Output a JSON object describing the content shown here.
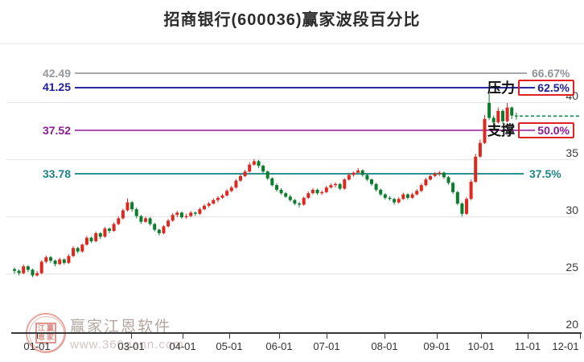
{
  "title": "招商银行(600036)赢家波段百分比",
  "watermark": {
    "brand": "赢家江恩软件",
    "url": "www.360gann.com",
    "seal_chars": [
      "江",
      "赢",
      "恩",
      "家"
    ]
  },
  "chart_data": {
    "type": "candlestick",
    "title": "招商银行(600036)赢家波段百分比",
    "x_ticks": [
      "01-01",
      "03-01",
      "04-01",
      "05-01",
      "06-01",
      "07-01",
      "08-01",
      "09-01",
      "10-01",
      "11-01",
      "12-01"
    ],
    "y_ticks": [
      40,
      35,
      30,
      25,
      20
    ],
    "ylim": [
      20,
      45.3
    ],
    "grid": true,
    "levels": [
      {
        "price": "42.49",
        "percent": "66.67%",
        "role": "",
        "color": "#a9a9a9",
        "boxed": false
      },
      {
        "price": "41.25",
        "percent": "62.5%",
        "role": "压力",
        "color": "#1e1e9c",
        "boxed": true
      },
      {
        "price": "37.52",
        "percent": "50.0%",
        "role": "支撑",
        "color": "#8e1b96",
        "boxed": true
      },
      {
        "price": "33.78",
        "percent": "37.5%",
        "role": "",
        "color": "#1e8389",
        "boxed": false
      }
    ],
    "last_price_line": {
      "price": 38.85,
      "style": "dashed",
      "color": "#0f8f4e"
    },
    "colors": {
      "up": "#dc281e",
      "down": "#0a7d2c"
    },
    "candles": [
      [
        25.45,
        25.6,
        25.05,
        25.3
      ],
      [
        25.3,
        25.45,
        24.9,
        25.1
      ],
      [
        25.1,
        25.85,
        25.0,
        25.7
      ],
      [
        25.7,
        25.8,
        25.2,
        25.4
      ],
      [
        25.4,
        25.5,
        24.75,
        24.9
      ],
      [
        24.9,
        25.3,
        24.8,
        25.1
      ],
      [
        25.1,
        26.25,
        25.0,
        26.1
      ],
      [
        26.1,
        26.65,
        25.95,
        26.5
      ],
      [
        26.5,
        26.6,
        26.0,
        26.2
      ],
      [
        26.2,
        26.3,
        25.7,
        25.9
      ],
      [
        25.9,
        26.45,
        25.8,
        26.3
      ],
      [
        26.3,
        26.4,
        25.85,
        26.0
      ],
      [
        26.0,
        26.75,
        25.9,
        26.6
      ],
      [
        26.6,
        27.45,
        26.5,
        27.3
      ],
      [
        27.3,
        27.4,
        26.85,
        27.0
      ],
      [
        27.0,
        27.7,
        26.9,
        27.6
      ],
      [
        27.6,
        28.35,
        27.5,
        28.2
      ],
      [
        28.2,
        28.3,
        27.75,
        27.9
      ],
      [
        27.9,
        28.75,
        27.8,
        28.6
      ],
      [
        28.6,
        28.7,
        28.1,
        28.3
      ],
      [
        28.3,
        29.15,
        28.2,
        29.0
      ],
      [
        29.0,
        29.1,
        28.6,
        28.8
      ],
      [
        28.8,
        29.55,
        28.7,
        29.4
      ],
      [
        29.4,
        30.05,
        29.3,
        29.9
      ],
      [
        29.9,
        30.75,
        29.8,
        30.6
      ],
      [
        30.6,
        31.65,
        30.5,
        31.3
      ],
      [
        31.3,
        31.4,
        30.5,
        30.7
      ],
      [
        30.7,
        30.85,
        29.9,
        30.1
      ],
      [
        30.1,
        30.2,
        29.4,
        29.6
      ],
      [
        29.6,
        30.05,
        29.5,
        29.9
      ],
      [
        29.9,
        30.0,
        29.25,
        29.4
      ],
      [
        29.4,
        29.5,
        28.75,
        28.9
      ],
      [
        28.9,
        29.0,
        28.4,
        28.6
      ],
      [
        28.6,
        29.3,
        28.5,
        29.2
      ],
      [
        29.2,
        29.85,
        29.1,
        29.7
      ],
      [
        29.7,
        30.35,
        29.6,
        30.2
      ],
      [
        30.2,
        30.55,
        30.0,
        30.4
      ],
      [
        30.4,
        30.5,
        29.85,
        30.0
      ],
      [
        30.0,
        30.3,
        29.85,
        30.1
      ],
      [
        30.1,
        30.55,
        30.0,
        30.4
      ],
      [
        30.4,
        30.5,
        30.1,
        30.3
      ],
      [
        30.3,
        30.85,
        30.2,
        30.7
      ],
      [
        30.7,
        31.15,
        30.6,
        31.0
      ],
      [
        31.0,
        31.35,
        30.85,
        31.2
      ],
      [
        31.2,
        31.65,
        31.1,
        31.5
      ],
      [
        31.5,
        31.85,
        31.3,
        31.7
      ],
      [
        31.7,
        32.05,
        31.6,
        31.9
      ],
      [
        31.9,
        32.45,
        31.8,
        32.3
      ],
      [
        32.3,
        32.75,
        32.2,
        32.6
      ],
      [
        32.6,
        33.35,
        32.5,
        33.2
      ],
      [
        33.2,
        33.75,
        33.1,
        33.6
      ],
      [
        33.6,
        34.15,
        33.5,
        34.0
      ],
      [
        34.0,
        34.8,
        33.9,
        34.6
      ],
      [
        34.6,
        35.1,
        34.5,
        34.9
      ],
      [
        34.9,
        35.0,
        34.3,
        34.5
      ],
      [
        34.5,
        34.6,
        33.85,
        34.0
      ],
      [
        34.0,
        34.1,
        33.25,
        33.4
      ],
      [
        33.4,
        33.5,
        32.7,
        32.8
      ],
      [
        32.8,
        32.95,
        32.25,
        32.4
      ],
      [
        32.4,
        32.55,
        31.95,
        32.1
      ],
      [
        32.1,
        32.2,
        31.7,
        31.8
      ],
      [
        31.8,
        31.95,
        31.35,
        31.5
      ],
      [
        31.5,
        31.6,
        31.05,
        31.2
      ],
      [
        31.2,
        31.35,
        30.85,
        31.1
      ],
      [
        31.1,
        31.8,
        31.0,
        31.7
      ],
      [
        31.7,
        32.25,
        31.6,
        32.1
      ],
      [
        32.1,
        32.55,
        32.0,
        32.4
      ],
      [
        32.4,
        32.5,
        31.95,
        32.1
      ],
      [
        32.1,
        32.35,
        31.95,
        32.2
      ],
      [
        32.2,
        32.75,
        32.1,
        32.6
      ],
      [
        32.6,
        32.95,
        32.5,
        32.8
      ],
      [
        32.8,
        33.05,
        32.6,
        32.9
      ],
      [
        32.9,
        33.0,
        32.35,
        32.5
      ],
      [
        32.5,
        33.4,
        32.4,
        33.3
      ],
      [
        33.3,
        33.85,
        33.2,
        33.7
      ],
      [
        33.7,
        34.0,
        33.55,
        33.9
      ],
      [
        33.9,
        34.3,
        33.8,
        34.1
      ],
      [
        34.1,
        34.2,
        33.55,
        33.7
      ],
      [
        33.7,
        33.8,
        33.15,
        33.3
      ],
      [
        33.3,
        33.4,
        32.75,
        32.9
      ],
      [
        32.9,
        33.0,
        32.25,
        32.4
      ],
      [
        32.4,
        32.5,
        31.85,
        32.0
      ],
      [
        32.0,
        32.1,
        31.55,
        31.7
      ],
      [
        31.7,
        31.85,
        31.45,
        31.6
      ],
      [
        31.6,
        31.7,
        31.1,
        31.3
      ],
      [
        31.3,
        31.75,
        31.2,
        31.6
      ],
      [
        31.6,
        32.15,
        31.5,
        32.0
      ],
      [
        32.0,
        32.1,
        31.55,
        31.7
      ],
      [
        31.7,
        32.15,
        31.6,
        32.0
      ],
      [
        32.0,
        32.45,
        31.9,
        32.3
      ],
      [
        32.3,
        32.95,
        32.2,
        32.8
      ],
      [
        32.8,
        33.45,
        32.7,
        33.3
      ],
      [
        33.3,
        33.75,
        33.2,
        33.6
      ],
      [
        33.6,
        33.95,
        33.5,
        33.8
      ],
      [
        33.8,
        34.05,
        33.6,
        33.9
      ],
      [
        33.9,
        34.0,
        33.35,
        33.5
      ],
      [
        33.5,
        33.6,
        32.85,
        33.0
      ],
      [
        33.0,
        33.1,
        32.05,
        32.2
      ],
      [
        32.2,
        32.3,
        31.05,
        31.2
      ],
      [
        31.2,
        31.3,
        30.05,
        30.3
      ],
      [
        30.3,
        31.75,
        30.2,
        31.6
      ],
      [
        31.6,
        33.3,
        31.5,
        33.1
      ],
      [
        33.1,
        35.55,
        33.0,
        35.3
      ],
      [
        35.3,
        36.8,
        35.2,
        36.5
      ],
      [
        36.5,
        38.95,
        36.4,
        38.6
      ],
      [
        40.0,
        40.8,
        38.5,
        38.7
      ],
      [
        38.7,
        38.9,
        37.95,
        38.3
      ],
      [
        38.3,
        39.6,
        38.2,
        39.3
      ],
      [
        39.3,
        39.45,
        38.2,
        38.4
      ],
      [
        38.4,
        40.0,
        38.3,
        39.6
      ],
      [
        39.6,
        39.7,
        38.6,
        38.9
      ],
      [
        38.9,
        39.15,
        38.55,
        38.85
      ]
    ]
  }
}
